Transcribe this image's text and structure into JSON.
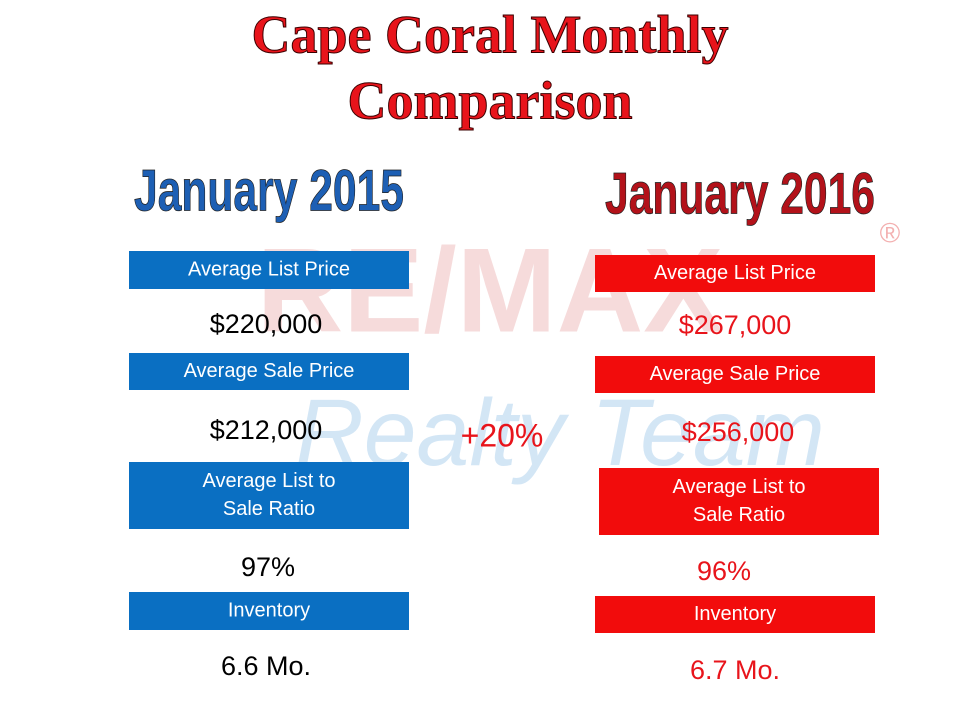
{
  "title": {
    "lines": [
      "Cape Coral Monthly",
      "Comparison"
    ]
  },
  "watermark": {
    "brand": "RE/MAX",
    "tagline": "Realty Team",
    "mark": "®"
  },
  "change": "+20%",
  "columns": [
    {
      "heading": "January 2015",
      "metrics": [
        {
          "label": [
            "Average List Price"
          ],
          "value": "$220,000"
        },
        {
          "label": [
            "Average Sale Price"
          ],
          "value": "$212,000"
        },
        {
          "label": [
            "Average List to",
            "Sale Ratio"
          ],
          "value": "97%"
        },
        {
          "label": [
            "Inventory"
          ],
          "value": "6.6 Mo."
        }
      ]
    },
    {
      "heading": "January 2016",
      "metrics": [
        {
          "label": [
            "Average List Price"
          ],
          "value": "$267,000"
        },
        {
          "label": [
            "Average Sale Price"
          ],
          "value": "$256,000"
        },
        {
          "label": [
            "Average List to",
            "Sale Ratio"
          ],
          "value": "96%"
        },
        {
          "label": [
            "Inventory"
          ],
          "value": "6.7 Mo."
        }
      ]
    }
  ]
}
